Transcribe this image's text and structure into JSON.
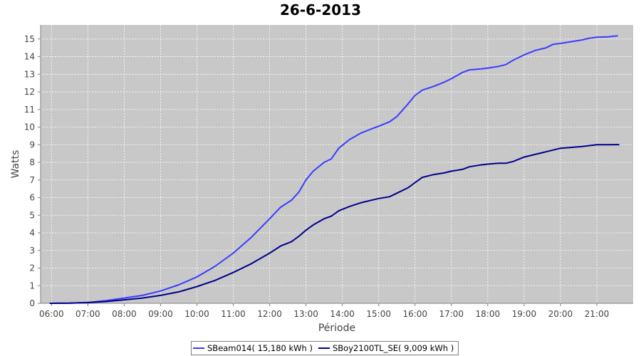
{
  "chart_data": {
    "type": "line",
    "title": "26-6-2013",
    "xlabel": "Période",
    "ylabel": "Watts",
    "xlim": [
      5.7,
      22.0
    ],
    "ylim": [
      0,
      15.8
    ],
    "x_ticks": [
      "06:00",
      "07:00",
      "08:00",
      "09:00",
      "10:00",
      "11:00",
      "12:00",
      "13:00",
      "14:00",
      "15:00",
      "16:00",
      "17:00",
      "18:00",
      "19:00",
      "20:00",
      "21:00"
    ],
    "y_ticks": [
      0,
      1,
      2,
      3,
      4,
      5,
      6,
      7,
      8,
      9,
      10,
      11,
      12,
      13,
      14,
      15
    ],
    "grid": true,
    "legend_position": "bottom",
    "series": [
      {
        "name": "SBeam014( 15,180 kWh )",
        "color": "#3b3bff",
        "x": [
          5.95,
          6.5,
          7.0,
          7.5,
          8.0,
          8.5,
          9.0,
          9.5,
          10.0,
          10.5,
          11.0,
          11.5,
          12.0,
          12.3,
          12.6,
          12.8,
          13.0,
          13.2,
          13.5,
          13.7,
          13.9,
          14.2,
          14.5,
          14.8,
          15.0,
          15.3,
          15.5,
          15.8,
          16.0,
          16.2,
          16.5,
          16.8,
          17.0,
          17.3,
          17.5,
          17.8,
          18.0,
          18.3,
          18.5,
          18.7,
          19.0,
          19.3,
          19.6,
          19.8,
          20.0,
          20.3,
          20.6,
          20.8,
          21.0,
          21.3,
          21.58
        ],
        "y": [
          0,
          0.01,
          0.05,
          0.15,
          0.3,
          0.45,
          0.7,
          1.05,
          1.5,
          2.1,
          2.85,
          3.75,
          4.8,
          5.45,
          5.85,
          6.3,
          7.0,
          7.5,
          8.0,
          8.2,
          8.8,
          9.3,
          9.65,
          9.9,
          10.05,
          10.3,
          10.6,
          11.3,
          11.8,
          12.1,
          12.3,
          12.55,
          12.75,
          13.1,
          13.25,
          13.3,
          13.35,
          13.45,
          13.55,
          13.8,
          14.1,
          14.35,
          14.5,
          14.7,
          14.75,
          14.85,
          14.95,
          15.05,
          15.1,
          15.12,
          15.18
        ]
      },
      {
        "name": "SBoy2100TL_SE( 9,009 kWh )",
        "color": "#00008b",
        "x": [
          5.95,
          6.5,
          7.0,
          7.5,
          8.0,
          8.5,
          9.0,
          9.5,
          10.0,
          10.5,
          11.0,
          11.5,
          12.0,
          12.3,
          12.6,
          12.8,
          13.0,
          13.2,
          13.5,
          13.7,
          13.9,
          14.2,
          14.5,
          14.8,
          15.0,
          15.3,
          15.5,
          15.8,
          16.0,
          16.2,
          16.5,
          16.8,
          17.0,
          17.3,
          17.5,
          17.8,
          18.0,
          18.3,
          18.5,
          18.7,
          19.0,
          19.3,
          19.6,
          19.8,
          20.0,
          20.3,
          20.6,
          20.8,
          21.0,
          21.3,
          21.62
        ],
        "y": [
          0,
          0.01,
          0.04,
          0.1,
          0.2,
          0.3,
          0.45,
          0.65,
          0.95,
          1.3,
          1.75,
          2.25,
          2.85,
          3.25,
          3.5,
          3.8,
          4.15,
          4.45,
          4.8,
          4.95,
          5.25,
          5.5,
          5.7,
          5.85,
          5.95,
          6.05,
          6.25,
          6.55,
          6.85,
          7.15,
          7.3,
          7.4,
          7.5,
          7.6,
          7.75,
          7.85,
          7.9,
          7.95,
          7.95,
          8.05,
          8.3,
          8.45,
          8.6,
          8.7,
          8.8,
          8.85,
          8.9,
          8.95,
          9.0,
          9.0,
          9.009
        ]
      }
    ]
  }
}
